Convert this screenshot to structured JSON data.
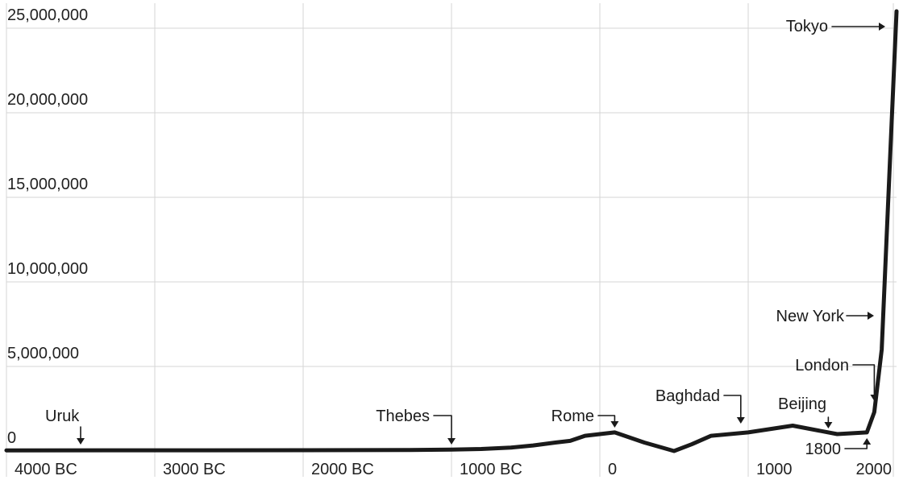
{
  "chart_data": {
    "type": "line",
    "title": "",
    "xlabel": "",
    "ylabel": "",
    "x_ticks": [
      {
        "x": -4000,
        "label": "4000 BC"
      },
      {
        "x": -3000,
        "label": "3000 BC"
      },
      {
        "x": -2000,
        "label": "2000 BC"
      },
      {
        "x": -1000,
        "label": "1000 BC"
      },
      {
        "x": 0,
        "label": "0"
      },
      {
        "x": 1000,
        "label": "1000"
      },
      {
        "x": 2000,
        "label": "2000"
      }
    ],
    "y_ticks": [
      {
        "y": 0,
        "label": "0"
      },
      {
        "y": 5000000,
        "label": "5,000,000"
      },
      {
        "y": 10000000,
        "label": "10,000,000"
      },
      {
        "y": 15000000,
        "label": "15,000,000"
      },
      {
        "y": 20000000,
        "label": "20,000,000"
      },
      {
        "y": 25000000,
        "label": "25,000,000"
      }
    ],
    "xlim": [
      -4000,
      2000
    ],
    "ylim": [
      0,
      26000000
    ],
    "grid": true,
    "series": [
      {
        "values": [
          [
            -4000,
            40000
          ],
          [
            -3000,
            45000
          ],
          [
            -2000,
            50000
          ],
          [
            -1300,
            55000
          ],
          [
            -1000,
            80000
          ],
          [
            -800,
            120000
          ],
          [
            -600,
            200000
          ],
          [
            -450,
            330000
          ],
          [
            -300,
            500000
          ],
          [
            -200,
            600000
          ],
          [
            -100,
            900000
          ],
          [
            100,
            1100000
          ],
          [
            300,
            500000
          ],
          [
            500,
            0
          ],
          [
            620,
            400000
          ],
          [
            750,
            900000
          ],
          [
            1000,
            1100000
          ],
          [
            1300,
            1500000
          ],
          [
            1600,
            1000000
          ],
          [
            1800,
            1100000
          ],
          [
            1850,
            2300000
          ],
          [
            1900,
            6000000
          ],
          [
            1930,
            12000000
          ],
          [
            1960,
            18000000
          ],
          [
            2000,
            26000000
          ]
        ]
      }
    ],
    "annotations": [
      {
        "label": "Uruk",
        "x": -3500,
        "y": 40000,
        "arrow": "down"
      },
      {
        "label": "Thebes",
        "x": -1000,
        "y": 55000,
        "arrow": "down"
      },
      {
        "label": "Rome",
        "x": 100,
        "y": 1100000,
        "arrow": "down"
      },
      {
        "label": "Baghdad",
        "x": 950,
        "y": 1200000,
        "arrow": "down"
      },
      {
        "label": "Beijing",
        "x": 1540,
        "y": 1250000,
        "arrow": "down"
      },
      {
        "label": "London",
        "x": 1850,
        "y": 2300000,
        "arrow": "down"
      },
      {
        "label": "1800",
        "x": 1800,
        "y": 1100000,
        "arrow": "up"
      },
      {
        "label": "New York",
        "x": 1960,
        "y": 8000000,
        "arrow": "right"
      },
      {
        "label": "Tokyo",
        "x": 2000,
        "y": 25000000,
        "arrow": "right"
      }
    ]
  }
}
